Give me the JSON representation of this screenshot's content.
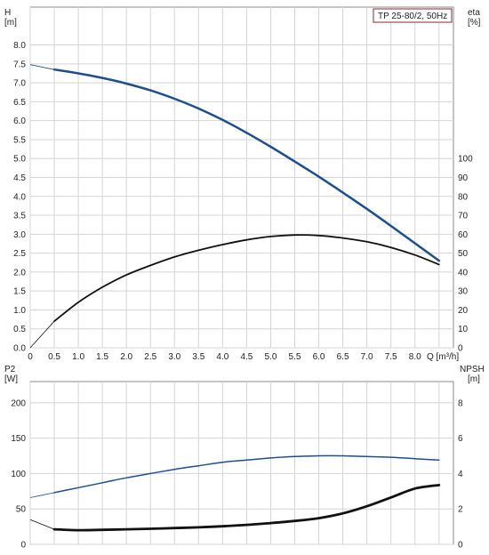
{
  "legend": {
    "label": "TP 25-80/2, 50Hz"
  },
  "chart_data": [
    {
      "type": "line",
      "panel": "top",
      "x_axis": {
        "label": "Q [m³/h]",
        "range": [
          0,
          8.8
        ],
        "ticks": [
          "0",
          "0.5",
          "1.0",
          "1.5",
          "2.0",
          "2.5",
          "3.0",
          "3.5",
          "4.0",
          "4.5",
          "5.0",
          "5.5",
          "6.0",
          "6.5",
          "7.0",
          "7.5",
          "8.0"
        ]
      },
      "y_left": {
        "label_top": "H",
        "label_unit": "[m]",
        "range": [
          0,
          9
        ],
        "ticks": [
          "0.0",
          "0.5",
          "1.0",
          "1.5",
          "2.0",
          "2.5",
          "3.0",
          "3.5",
          "4.0",
          "4.5",
          "5.0",
          "5.5",
          "6.0",
          "6.5",
          "7.0",
          "7.5",
          "8.0"
        ]
      },
      "y_right": {
        "label_top": "eta",
        "label_unit": "[%]",
        "range": [
          0,
          180
        ],
        "ticks": [
          "0",
          "10",
          "20",
          "30",
          "40",
          "50",
          "60",
          "70",
          "80",
          "90",
          "100"
        ]
      },
      "grid": true,
      "series": [
        {
          "axis": "left",
          "color": "#1f4e8c",
          "x": [
            0,
            0.5,
            1.0,
            1.5,
            2.0,
            2.5,
            3.0,
            3.5,
            4.0,
            4.5,
            5.0,
            5.5,
            6.0,
            6.5,
            7.0,
            7.5,
            8.0,
            8.5
          ],
          "y": [
            7.48,
            7.35,
            7.25,
            7.13,
            6.98,
            6.8,
            6.58,
            6.32,
            6.02,
            5.68,
            5.31,
            4.92,
            4.52,
            4.1,
            3.67,
            3.22,
            2.76,
            2.3
          ]
        },
        {
          "axis": "right",
          "color": "#111111",
          "x": [
            0,
            0.5,
            1.0,
            1.5,
            2.0,
            2.5,
            3.0,
            3.5,
            4.0,
            4.5,
            5.0,
            5.5,
            6.0,
            6.5,
            7.0,
            7.5,
            8.0,
            8.5
          ],
          "y": [
            0,
            14,
            24,
            32,
            38.5,
            43.5,
            48,
            51.5,
            54.5,
            57,
            58.8,
            59.6,
            59.3,
            58,
            56,
            53,
            49,
            44
          ]
        }
      ]
    },
    {
      "type": "line",
      "panel": "bottom",
      "x_axis": {
        "range": [
          0,
          8.8
        ]
      },
      "y_left": {
        "label_top": "P2",
        "label_unit": "[W]",
        "range": [
          0,
          230
        ],
        "ticks": [
          "0",
          "50",
          "100",
          "150",
          "200"
        ]
      },
      "y_right": {
        "label_top": "NPSH",
        "label_unit": "[m]",
        "range": [
          0,
          9.2
        ],
        "ticks": [
          "0",
          "2",
          "4",
          "6",
          "8"
        ]
      },
      "grid": true,
      "series": [
        {
          "axis": "left",
          "color": "#1f4e8c",
          "x": [
            0,
            0.5,
            1.0,
            1.5,
            2.0,
            2.5,
            3.0,
            3.5,
            4.0,
            4.5,
            5.0,
            5.5,
            6.0,
            6.5,
            7.0,
            7.5,
            8.0,
            8.5
          ],
          "y": [
            66,
            73,
            80,
            87,
            94,
            100,
            106,
            111,
            116,
            119,
            122,
            124,
            125,
            125,
            124,
            123,
            121,
            119
          ]
        },
        {
          "axis": "right",
          "color": "#111111",
          "x": [
            0,
            0.5,
            1.0,
            1.5,
            2.0,
            2.5,
            3.0,
            3.5,
            4.0,
            4.5,
            5.0,
            5.5,
            6.0,
            6.5,
            7.0,
            7.5,
            8.0,
            8.5
          ],
          "y": [
            1.4,
            0.85,
            0.8,
            0.82,
            0.85,
            0.88,
            0.92,
            0.96,
            1.02,
            1.1,
            1.2,
            1.32,
            1.48,
            1.75,
            2.15,
            2.65,
            3.15,
            3.35
          ]
        }
      ]
    }
  ]
}
